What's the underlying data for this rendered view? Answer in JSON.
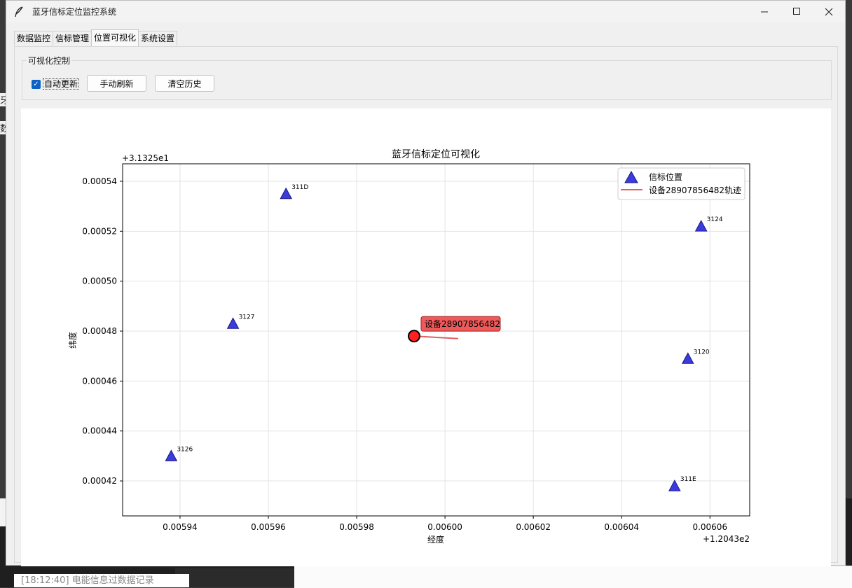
{
  "window": {
    "title": "蓝牙信标定位监控系统",
    "icon": "feather-icon"
  },
  "tabs": [
    {
      "label": "数据监控"
    },
    {
      "label": "信标管理"
    },
    {
      "label": "位置可视化",
      "active": true
    },
    {
      "label": "系统设置"
    }
  ],
  "controls": {
    "group_label": "可视化控制",
    "auto_update_label": "自动更新",
    "auto_update_checked": true,
    "refresh_label": "手动刷新",
    "clear_label": "清空历史"
  },
  "background": {
    "log_text": "[18:12:40] 电能信息过数据记录",
    "left_glyph_1": "牙",
    "left_glyph_2": "数"
  },
  "colors": {
    "beacon_fill": "#3b3bdf",
    "trail": "#e06060",
    "device_fill": "#ff2020",
    "device_label_bg": "#ee5a5a"
  },
  "chart_data": {
    "type": "scatter",
    "title": "蓝牙信标定位可视化",
    "xlabel": "经度",
    "ylabel": "纬度",
    "x_offset_label": "+1.2043e2",
    "y_offset_label": "+3.1325e1",
    "xlim": [
      0.005927,
      0.006069
    ],
    "ylim": [
      0.000406,
      0.000547
    ],
    "x_ticks": [
      "0.00594",
      "0.00596",
      "0.00598",
      "0.00600",
      "0.00602",
      "0.00604",
      "0.00606"
    ],
    "x_tick_values": [
      0.00594,
      0.00596,
      0.00598,
      0.006,
      0.00602,
      0.00604,
      0.00606
    ],
    "y_ticks": [
      "0.00054",
      "0.00052",
      "0.00050",
      "0.00048",
      "0.00046",
      "0.00044",
      "0.00042"
    ],
    "y_tick_values": [
      0.00054,
      0.00052,
      0.0005,
      0.00048,
      0.00046,
      0.00044,
      0.00042
    ],
    "grid": true,
    "legend_position": "top-right",
    "legend": [
      {
        "label": "信标位置",
        "marker": "triangle"
      },
      {
        "label": "设备28907856482轨迹",
        "marker": "line"
      }
    ],
    "beacons": [
      {
        "id": "311D",
        "x": 0.005964,
        "y": 0.000535
      },
      {
        "id": "3124",
        "x": 0.006058,
        "y": 0.000522
      },
      {
        "id": "3127",
        "x": 0.005952,
        "y": 0.000483
      },
      {
        "id": "3120",
        "x": 0.006055,
        "y": 0.000469
      },
      {
        "id": "3126",
        "x": 0.005938,
        "y": 0.00043
      },
      {
        "id": "311E",
        "x": 0.006052,
        "y": 0.000418
      }
    ],
    "trail": {
      "name": "设备28907856482轨迹",
      "points": [
        {
          "x": 0.005993,
          "y": 0.000478
        },
        {
          "x": 0.006003,
          "y": 0.000477
        }
      ]
    },
    "device": {
      "label": "设备28907856482",
      "x": 0.005993,
      "y": 0.000478
    }
  }
}
